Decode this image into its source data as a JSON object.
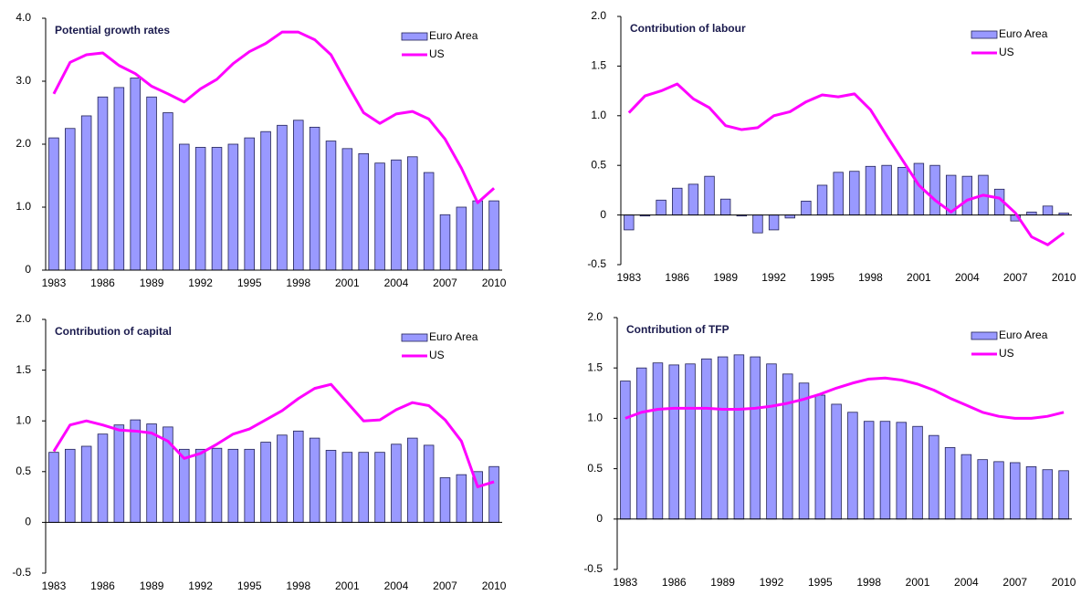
{
  "chart_data": [
    {
      "type": "combo",
      "title": "Potential growth rates",
      "categories": [
        "1983",
        null,
        null,
        "1986",
        null,
        null,
        "1989",
        null,
        null,
        "1992",
        null,
        null,
        "1995",
        null,
        null,
        "1998",
        null,
        null,
        "2001",
        null,
        null,
        "2004",
        null,
        null,
        "2007",
        null,
        null,
        "2010"
      ],
      "series": [
        {
          "name": "Euro Area",
          "type": "bar",
          "color": "#9999ff",
          "values": [
            2.1,
            2.25,
            2.45,
            2.75,
            2.9,
            3.05,
            2.75,
            2.5,
            2.0,
            1.95,
            1.95,
            2.0,
            2.1,
            2.2,
            2.3,
            2.38,
            2.27,
            2.05,
            1.93,
            1.85,
            1.7,
            1.75,
            1.8,
            1.55,
            0.88,
            1.0,
            1.1,
            1.1
          ]
        },
        {
          "name": "US",
          "type": "line",
          "color": "#ff00ff",
          "values": [
            2.8,
            3.3,
            3.42,
            3.45,
            3.25,
            3.12,
            2.92,
            2.8,
            2.67,
            2.88,
            3.03,
            3.28,
            3.47,
            3.6,
            3.78,
            3.78,
            3.66,
            3.42,
            2.95,
            2.5,
            2.33,
            2.48,
            2.52,
            2.4,
            2.08,
            1.62,
            1.07,
            1.3
          ]
        }
      ],
      "ylim": [
        0,
        4
      ],
      "yticks": [
        0,
        {
          "value": 1,
          "label": "1.0"
        },
        {
          "value": 2,
          "label": "2.0"
        },
        {
          "value": 3,
          "label": "3.0"
        },
        {
          "value": 4,
          "label": "4.0"
        }
      ],
      "legend": "upper right"
    },
    {
      "type": "combo",
      "title": "Contribution of labour",
      "categories": [
        "1983",
        null,
        null,
        "1986",
        null,
        null,
        "1989",
        null,
        null,
        "1992",
        null,
        null,
        "1995",
        null,
        null,
        "1998",
        null,
        null,
        "2001",
        null,
        null,
        "2004",
        null,
        null,
        "2007",
        null,
        null,
        "2010"
      ],
      "series": [
        {
          "name": "Euro Area",
          "type": "bar",
          "color": "#9999ff",
          "values": [
            -0.15,
            -0.01,
            0.15,
            0.27,
            0.31,
            0.39,
            0.16,
            -0.01,
            -0.18,
            -0.15,
            -0.03,
            0.14,
            0.3,
            0.43,
            0.44,
            0.49,
            0.5,
            0.48,
            0.52,
            0.5,
            0.4,
            0.39,
            0.4,
            0.26,
            -0.06,
            0.03,
            0.09,
            0.02
          ]
        },
        {
          "name": "US",
          "type": "line",
          "color": "#ff00ff",
          "values": [
            1.03,
            1.2,
            1.25,
            1.32,
            1.17,
            1.08,
            0.9,
            0.86,
            0.88,
            1.0,
            1.04,
            1.14,
            1.21,
            1.19,
            1.22,
            1.06,
            0.8,
            0.55,
            0.3,
            0.15,
            0.03,
            0.15,
            0.2,
            0.17,
            0.02,
            -0.22,
            -0.3,
            -0.18
          ]
        }
      ],
      "ylim": [
        -0.5,
        2
      ],
      "yticks": [
        -0.5,
        0,
        0.5,
        {
          "value": 1,
          "label": "1.0"
        },
        1.5,
        {
          "value": 2,
          "label": "2.0"
        }
      ],
      "legend": "upper right"
    },
    {
      "type": "combo",
      "title": "Contribution of capital",
      "categories": [
        "1983",
        null,
        null,
        "1986",
        null,
        null,
        "1989",
        null,
        null,
        "1992",
        null,
        null,
        "1995",
        null,
        null,
        "1998",
        null,
        null,
        "2001",
        null,
        null,
        "2004",
        null,
        null,
        "2007",
        null,
        null,
        "2010"
      ],
      "series": [
        {
          "name": "Euro Area",
          "type": "bar",
          "color": "#9999ff",
          "values": [
            0.69,
            0.72,
            0.75,
            0.87,
            0.96,
            1.01,
            0.97,
            0.94,
            0.72,
            0.72,
            0.73,
            0.72,
            0.72,
            0.79,
            0.86,
            0.9,
            0.83,
            0.71,
            0.69,
            0.69,
            0.69,
            0.77,
            0.83,
            0.76,
            0.44,
            0.47,
            0.5,
            0.55
          ]
        },
        {
          "name": "US",
          "type": "line",
          "color": "#ff00ff",
          "values": [
            0.7,
            0.96,
            1.0,
            0.96,
            0.91,
            0.9,
            0.88,
            0.8,
            0.63,
            0.68,
            0.77,
            0.87,
            0.92,
            1.01,
            1.1,
            1.22,
            1.32,
            1.36,
            1.18,
            1.0,
            1.01,
            1.11,
            1.18,
            1.15,
            1.01,
            0.8,
            0.35,
            0.4
          ]
        }
      ],
      "ylim": [
        -0.5,
        2
      ],
      "yticks": [
        -0.5,
        0,
        0.5,
        {
          "value": 1,
          "label": "1.0"
        },
        1.5,
        {
          "value": 2,
          "label": "2.0"
        }
      ],
      "legend": "upper right"
    },
    {
      "type": "combo",
      "title": "Contribution of TFP",
      "categories": [
        "1983",
        null,
        null,
        "1986",
        null,
        null,
        "1989",
        null,
        null,
        "1992",
        null,
        null,
        "1995",
        null,
        null,
        "1998",
        null,
        null,
        "2001",
        null,
        null,
        "2004",
        null,
        null,
        "2007",
        null,
        null,
        "2010"
      ],
      "series": [
        {
          "name": "Euro Area",
          "type": "bar",
          "color": "#9999ff",
          "values": [
            1.37,
            1.5,
            1.55,
            1.53,
            1.54,
            1.59,
            1.61,
            1.63,
            1.61,
            1.54,
            1.44,
            1.35,
            1.23,
            1.14,
            1.06,
            0.97,
            0.97,
            0.96,
            0.92,
            0.83,
            0.71,
            0.64,
            0.59,
            0.57,
            0.56,
            0.52,
            0.49,
            0.48
          ]
        },
        {
          "name": "US",
          "type": "line",
          "color": "#ff00ff",
          "values": [
            1.0,
            1.06,
            1.09,
            1.1,
            1.1,
            1.1,
            1.09,
            1.09,
            1.1,
            1.12,
            1.15,
            1.19,
            1.24,
            1.3,
            1.35,
            1.39,
            1.4,
            1.38,
            1.34,
            1.28,
            1.2,
            1.13,
            1.06,
            1.02,
            1.0,
            1.0,
            1.02,
            1.06
          ]
        }
      ],
      "ylim": [
        -0.5,
        2
      ],
      "yticks": [
        -0.5,
        0,
        0.5,
        {
          "value": 1,
          "label": "1.0"
        },
        1.5,
        {
          "value": 2,
          "label": "2.0"
        }
      ],
      "legend": "upper right"
    }
  ]
}
